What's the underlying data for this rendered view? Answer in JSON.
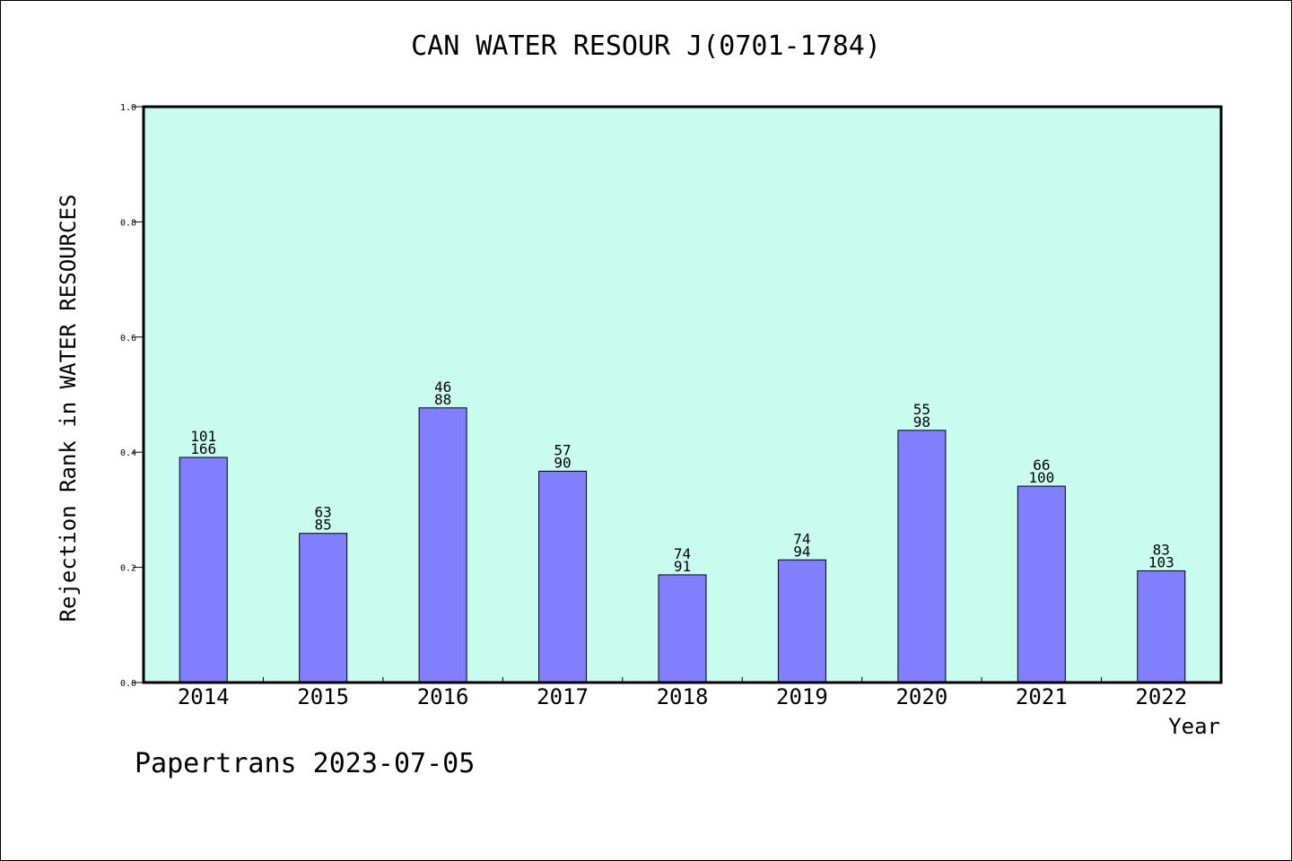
{
  "chart_data": {
    "type": "bar",
    "title": "CAN WATER RESOUR J(0701-1784)",
    "xlabel": "Year",
    "ylabel": "Rejection Rank in WATER RESOURCES",
    "categories": [
      "2014",
      "2015",
      "2016",
      "2017",
      "2018",
      "2019",
      "2020",
      "2021",
      "2022"
    ],
    "values": [
      0.391,
      0.259,
      0.477,
      0.367,
      0.187,
      0.213,
      0.438,
      0.341,
      0.194
    ],
    "labels_top": [
      "101",
      "63",
      "46",
      "57",
      "74",
      "74",
      "55",
      "66",
      "83"
    ],
    "labels_bottom": [
      "166",
      "85",
      "88",
      "90",
      "91",
      "94",
      "98",
      "100",
      "103"
    ],
    "ylim": [
      0,
      1.0
    ],
    "yticks": [
      "0.0",
      "0.2",
      "0.4",
      "0.6",
      "0.8",
      "1.0"
    ],
    "grid": false,
    "colors": {
      "plot_background": "#c8fcee",
      "bar_fill": "#8080ff",
      "bar_stroke": "#000000",
      "axis": "#000000"
    }
  },
  "footer": "Papertrans 2023-07-05"
}
